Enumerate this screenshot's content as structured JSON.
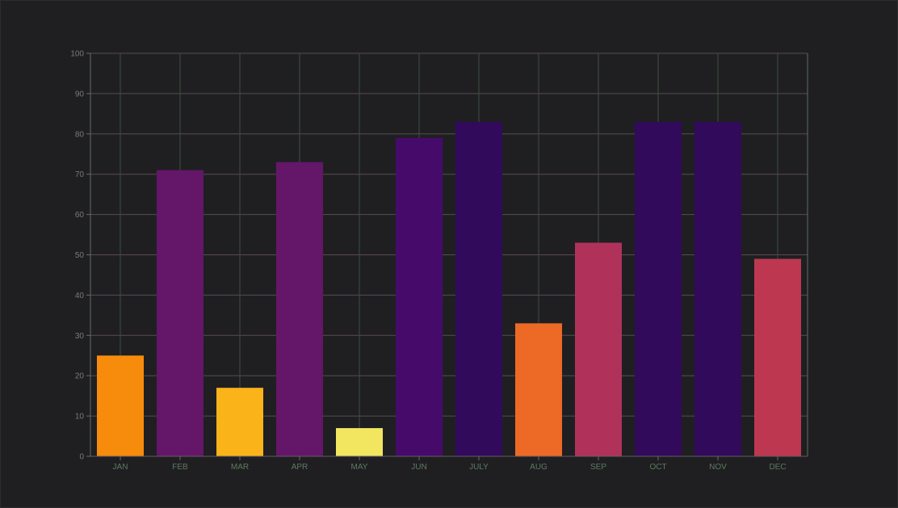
{
  "chart_data": {
    "type": "bar",
    "categories": [
      "JAN",
      "FEB",
      "MAR",
      "APR",
      "MAY",
      "JUN",
      "JULY",
      "AUG",
      "SEP",
      "OCT",
      "NOV",
      "DEC"
    ],
    "values": [
      25,
      71,
      17,
      73,
      7,
      79,
      83,
      33,
      53,
      83,
      83,
      49
    ],
    "colors": [
      "#f78b0c",
      "#641669",
      "#fbb31a",
      "#641669",
      "#f2e661",
      "#460b6a",
      "#310a5c",
      "#ec6a26",
      "#b0325b",
      "#310a5c",
      "#310a5c",
      "#be3751"
    ],
    "yticks": [
      "0",
      "10",
      "20",
      "30",
      "40",
      "50",
      "60",
      "70",
      "80",
      "90",
      "100"
    ],
    "ylim": [
      0,
      100
    ],
    "title": "",
    "xlabel": "",
    "ylabel": "",
    "grid": true,
    "legend": "none",
    "grid_color_horizontal": "#5a4a50",
    "grid_color_vertical": "#3f4f3f",
    "background": "#1f1f22"
  }
}
